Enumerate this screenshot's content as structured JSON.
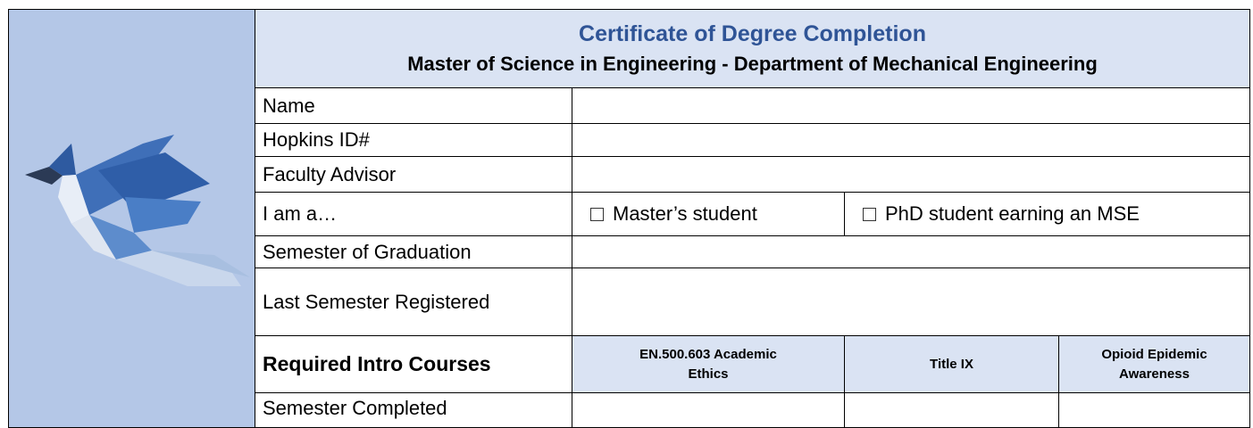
{
  "header": {
    "title": "Certificate of Degree Completion",
    "subtitle": "Master of Science in Engineering - Department of Mechanical Engineering"
  },
  "fields": [
    "Name",
    "Hopkins ID#",
    "Faculty Advisor"
  ],
  "status": {
    "label": "I am a…",
    "options": [
      "Master’s student",
      "PhD student earning an MSE"
    ]
  },
  "more_fields": [
    "Semester of Graduation",
    "Last Semester Registered"
  ],
  "courses": {
    "label": "Required Intro Courses",
    "columns": [
      "EN.500.603 Academic Ethics",
      "Title IX",
      "Opioid Epidemic Awareness"
    ],
    "row_label": "Semester Completed"
  }
}
